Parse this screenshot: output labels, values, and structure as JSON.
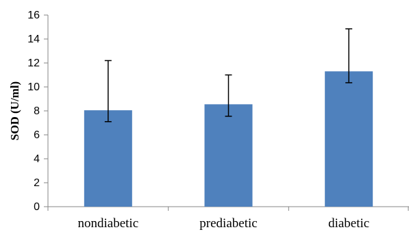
{
  "chart_data": {
    "type": "bar",
    "categories": [
      "nondiabetic",
      "prediabetic",
      "diabetic"
    ],
    "values": [
      8.05,
      8.55,
      11.3
    ],
    "error_upper": [
      12.2,
      11.0,
      14.85
    ],
    "error_lower": [
      7.1,
      7.55,
      10.35
    ],
    "ylabel": "SOD (U/ml)",
    "xlabel": "",
    "title": "",
    "ylim": [
      0,
      16
    ],
    "yticks": [
      0,
      2,
      4,
      6,
      8,
      10,
      12,
      14,
      16
    ],
    "grid": false,
    "legend": "none",
    "bar_color": "#4f81bd"
  }
}
